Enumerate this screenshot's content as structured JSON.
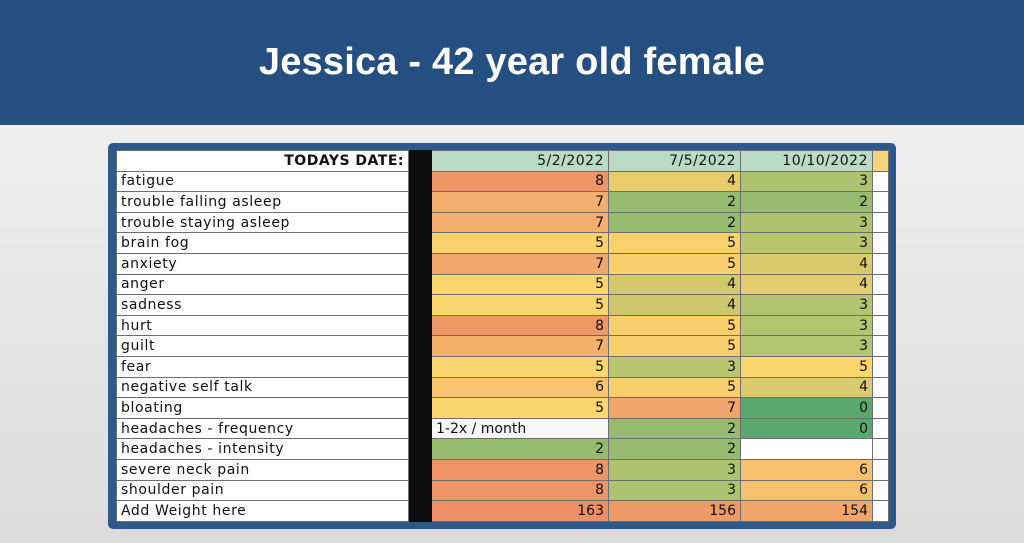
{
  "title": "Jessica - 42 year old female",
  "table": {
    "header_label": "TODAYS DATE:",
    "dates": [
      "5/2/2022",
      "7/5/2022",
      "10/10/2022"
    ],
    "rows": [
      {
        "label": "fatigue",
        "values": [
          "8",
          "4",
          "3"
        ],
        "colors": [
          "#ee9467",
          "#e6cd69",
          "#aec36f"
        ]
      },
      {
        "label": "trouble falling asleep",
        "values": [
          "7",
          "2",
          "2"
        ],
        "colors": [
          "#f3ad6c",
          "#96bb6e",
          "#96bb6e"
        ]
      },
      {
        "label": "trouble staying asleep",
        "values": [
          "7",
          "2",
          "3"
        ],
        "colors": [
          "#f3ad6c",
          "#96bb6e",
          "#aec36f"
        ]
      },
      {
        "label": "brain fog",
        "values": [
          "5",
          "5",
          "3"
        ],
        "colors": [
          "#fad26d",
          "#fad26d",
          "#b7c66f"
        ]
      },
      {
        "label": "anxiety",
        "values": [
          "7",
          "5",
          "4"
        ],
        "colors": [
          "#f2a86b",
          "#f9cf6d",
          "#d8ca6d"
        ]
      },
      {
        "label": "anger",
        "values": [
          "5",
          "4",
          "4"
        ],
        "colors": [
          "#fbd56e",
          "#d2c86e",
          "#e3cc6e"
        ]
      },
      {
        "label": "sadness",
        "values": [
          "5",
          "4",
          "3"
        ],
        "colors": [
          "#fbd56e",
          "#cfc76e",
          "#b2c46f"
        ]
      },
      {
        "label": "hurt",
        "values": [
          "8",
          "5",
          "3"
        ],
        "colors": [
          "#ee9868",
          "#f9cf6d",
          "#b3c56f"
        ]
      },
      {
        "label": "guilt",
        "values": [
          "7",
          "5",
          "3"
        ],
        "colors": [
          "#f4b06b",
          "#f9cf6d",
          "#b3c56f"
        ]
      },
      {
        "label": "fear",
        "values": [
          "5",
          "3",
          "5"
        ],
        "colors": [
          "#fbd56e",
          "#b9c66f",
          "#fbd56e"
        ]
      },
      {
        "label": "negative self talk",
        "values": [
          "6",
          "5",
          "4"
        ],
        "colors": [
          "#f8c56c",
          "#f9cf6d",
          "#dccb6e"
        ]
      },
      {
        "label": "bloating",
        "values": [
          "5",
          "7",
          "0"
        ],
        "colors": [
          "#fbd56e",
          "#f2a56a",
          "#5aa86f"
        ]
      },
      {
        "label": "headaches - frequency",
        "values": [
          "1-2x / month",
          "2",
          "0"
        ],
        "colors": [
          "",
          "#96bb6e",
          "#5aa86f"
        ]
      },
      {
        "label": "headaches - intensity",
        "values": [
          "2",
          "2",
          ""
        ],
        "colors": [
          "#96bb6e",
          "#96bb6e",
          ""
        ]
      },
      {
        "label": "severe neck pain",
        "values": [
          "8",
          "3",
          "6"
        ],
        "colors": [
          "#ee9467",
          "#aec36f",
          "#f6c06c"
        ]
      },
      {
        "label": "shoulder pain",
        "values": [
          "8",
          "3",
          "6"
        ],
        "colors": [
          "#ee9467",
          "#aec36f",
          "#f6c06c"
        ]
      },
      {
        "label": "Add Weight here",
        "values": [
          "163",
          "156",
          "154"
        ],
        "colors": [
          "#ef8e66",
          "#ee9a68",
          "#f1a56a"
        ]
      }
    ]
  }
}
